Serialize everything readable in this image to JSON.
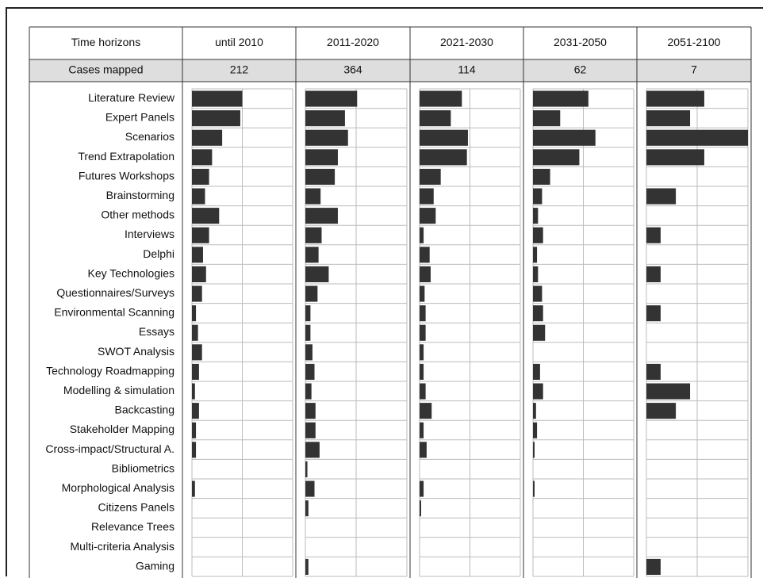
{
  "chart_data": {
    "type": "bar",
    "header_label": "Time horizons",
    "count_label": "Cases mapped",
    "horizons": [
      "until 2010",
      "2011-2020",
      "2021-2030",
      "2031-2050",
      "2051-2100"
    ],
    "cases_mapped": [
      "212",
      "364",
      "114",
      "62",
      "7"
    ],
    "methods": [
      "Literature Review",
      "Expert Panels",
      "Scenarios",
      "Trend Extrapolation",
      "Futures Workshops",
      "Brainstorming",
      "Other methods",
      "Interviews",
      "Delphi",
      "Key Technologies",
      "Questionnaires/Surveys",
      "Environmental Scanning",
      "Essays",
      "SWOT Analysis",
      "Technology Roadmapping",
      "Modelling & simulation",
      "Backcasting",
      "Stakeholder Mapping",
      "Cross-impact/Structural A.",
      "Bibliometrics",
      "Morphological Analysis",
      "Citizens Panels",
      "Relevance Trees",
      "Multi-criteria Analysis",
      "Gaming"
    ],
    "xlim": [
      0,
      100
    ],
    "series": [
      {
        "values": [
          50,
          48,
          30,
          20,
          17,
          13,
          27,
          17,
          11,
          14,
          10,
          4,
          6,
          10,
          7,
          3,
          7,
          4,
          4,
          0,
          3,
          0,
          0,
          0,
          0
        ]
      },
      {
        "values": [
          51,
          39,
          42,
          32,
          29,
          15,
          32,
          16,
          13,
          23,
          12,
          5,
          5,
          7,
          9,
          6,
          10,
          10,
          14,
          2,
          9,
          3,
          0,
          0,
          3
        ]
      },
      {
        "values": [
          42,
          31,
          48,
          47,
          21,
          14,
          16,
          4,
          10,
          11,
          5,
          6,
          6,
          4,
          4,
          6,
          12,
          4,
          7,
          0,
          4,
          1,
          0,
          0,
          0
        ]
      },
      {
        "values": [
          55,
          27,
          62,
          46,
          17,
          9,
          5,
          10,
          4,
          5,
          9,
          10,
          12,
          0,
          7,
          10,
          3,
          4,
          1,
          0,
          1,
          0,
          0,
          0,
          0
        ]
      },
      {
        "values": [
          57,
          43,
          100,
          57,
          0,
          29,
          0,
          14,
          0,
          14,
          0,
          14,
          0,
          0,
          14,
          43,
          29,
          0,
          0,
          0,
          0,
          0,
          0,
          0,
          14
        ]
      }
    ],
    "colors": {
      "bar": "#333333",
      "cell_border": "#bbbbbb",
      "table_border": "#333333",
      "count_row_bg": "#dedede"
    }
  }
}
